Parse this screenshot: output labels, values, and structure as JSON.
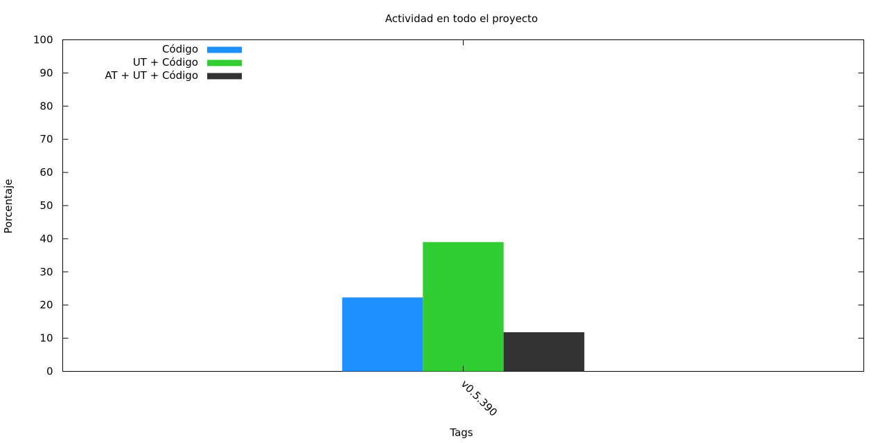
{
  "chart_data": {
    "type": "bar",
    "title": "Actividad en todo el proyecto",
    "xlabel": "Tags",
    "ylabel": "Porcentaje",
    "categories": [
      "v0.5.390"
    ],
    "series": [
      {
        "name": "Código",
        "values": [
          22.3
        ],
        "color": "#1e90ff"
      },
      {
        "name": "UT + Código",
        "values": [
          39.0
        ],
        "color": "#32cd32"
      },
      {
        "name": "AT + UT + Código",
        "values": [
          11.8
        ],
        "color": "#333333"
      }
    ],
    "ylim": [
      0,
      100
    ],
    "yticks": [
      0,
      10,
      20,
      30,
      40,
      50,
      60,
      70,
      80,
      90,
      100
    ],
    "grid": false,
    "legend_position": "top-left"
  }
}
